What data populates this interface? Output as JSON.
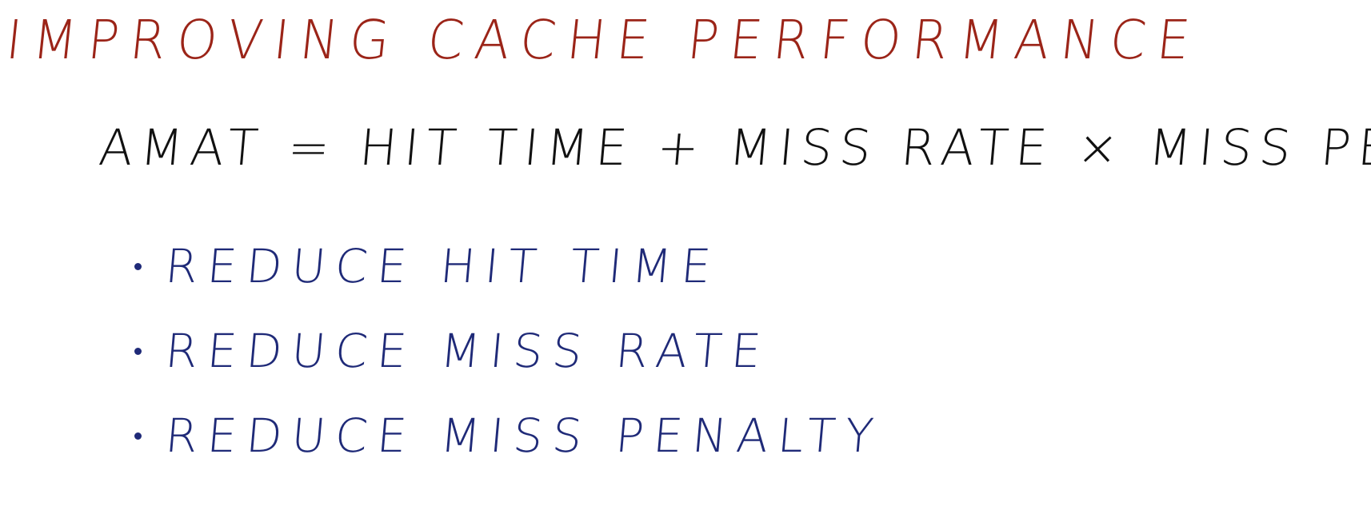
{
  "title": "IMPROVING CACHE PERFORMANCE",
  "formula": "AMAT = HIT TIME + MISS RATE × MISS PENALTY",
  "bullets": [
    "REDUCE HIT TIME",
    "REDUCE MISS RATE",
    "REDUCE MISS PENALTY"
  ],
  "colors": {
    "title": "#9b2418",
    "formula": "#111111",
    "bullets": "#1f2a78",
    "background": "#ffffff"
  }
}
